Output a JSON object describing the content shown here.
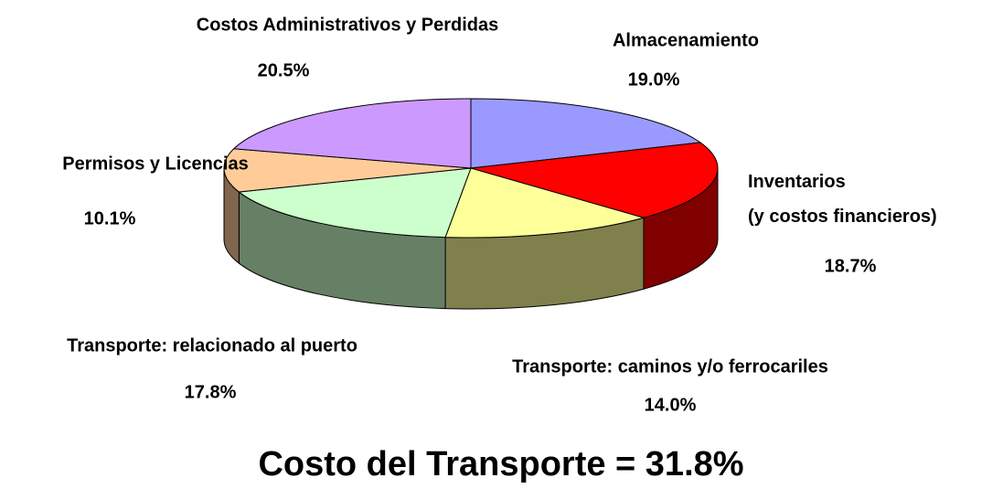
{
  "chart_data": {
    "type": "pie3d",
    "categories": [
      "Almacenamiento",
      "Inventarios\n(y costos financieros)",
      "Transporte: caminos y/o ferrocariles",
      "Transporte: relacionado al puerto",
      "Permisos y Licencias",
      "Costos Administrativos y Perdidas"
    ],
    "values": [
      19.0,
      18.7,
      14.0,
      17.8,
      10.1,
      20.5
    ],
    "value_labels": [
      "19.0%",
      "18.7%",
      "14.0%",
      "17.8%",
      "10.1%",
      "20.5%"
    ],
    "colors": [
      "#9999ff",
      "#ff0000",
      "#ffff99",
      "#ccffcc",
      "#ffcc99",
      "#cc99ff"
    ],
    "annotation": "Costo del Transporte = 31.8%"
  }
}
